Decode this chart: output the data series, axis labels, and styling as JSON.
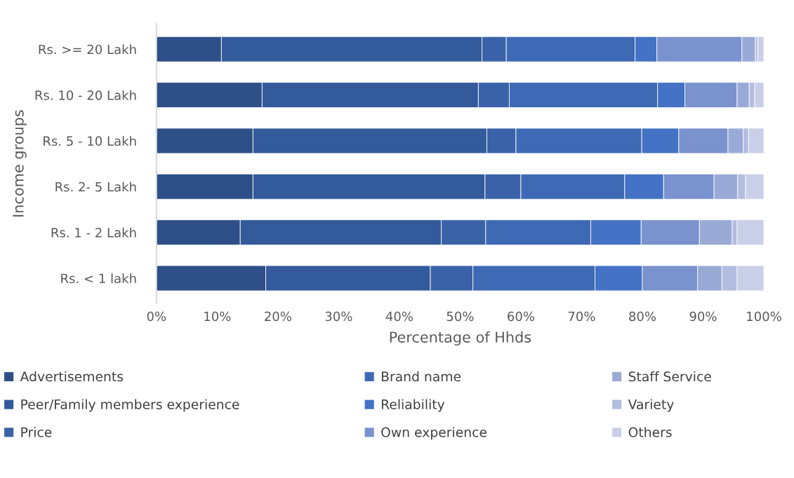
{
  "chart_data": {
    "type": "bar",
    "orientation": "horizontal",
    "stacked": true,
    "xlabel": "Percentage of Hhds",
    "ylabel": "Income groups",
    "categories": [
      "Rs. >= 20 Lakh",
      "Rs. 10 - 20 Lakh",
      "Rs. 5 - 10 Lakh",
      "Rs. 2- 5 Lakh",
      "Rs. 1 - 2 Lakh",
      "Rs. < 1 lakh"
    ],
    "xlim": [
      0,
      100
    ],
    "xticks": [
      {
        "value": 0,
        "label": "0%"
      },
      {
        "value": 10,
        "label": "10%"
      },
      {
        "value": 20,
        "label": "20%"
      },
      {
        "value": 30,
        "label": "30%"
      },
      {
        "value": 40,
        "label": "40%"
      },
      {
        "value": 50,
        "label": "50%"
      },
      {
        "value": 60,
        "label": "60%"
      },
      {
        "value": 70,
        "label": "70%"
      },
      {
        "value": 80,
        "label": "80%"
      },
      {
        "value": 90,
        "label": "90%"
      },
      {
        "value": 100,
        "label": "100%"
      }
    ],
    "grid": false,
    "legend": "bottom",
    "series": [
      {
        "name": "Advertisements",
        "color": "#2e4f87",
        "values": [
          10.7,
          17.4,
          15.9,
          15.9,
          13.8,
          18.0
        ]
      },
      {
        "name": "Peer/Family members experience",
        "color": "#335a9a",
        "values": [
          42.9,
          35.6,
          38.5,
          38.2,
          33.1,
          27.1
        ]
      },
      {
        "name": "Price",
        "color": "#3a62a8",
        "values": [
          4.0,
          5.1,
          4.8,
          5.9,
          7.3,
          7.0
        ]
      },
      {
        "name": "Brand name",
        "color": "#3e6ab5",
        "values": [
          21.2,
          24.4,
          20.7,
          17.1,
          17.3,
          20.1
        ]
      },
      {
        "name": "Reliability",
        "color": "#4472c4",
        "values": [
          3.6,
          4.5,
          6.1,
          6.4,
          8.3,
          7.8
        ]
      },
      {
        "name": "Own experience",
        "color": "#7a92cd",
        "values": [
          14.0,
          8.6,
          8.1,
          8.3,
          9.6,
          9.1
        ]
      },
      {
        "name": "Staff Service",
        "color": "#99aad6",
        "values": [
          2.2,
          2.0,
          2.5,
          3.9,
          5.4,
          4.0
        ]
      },
      {
        "name": "Variety",
        "color": "#b2bddf",
        "values": [
          0.4,
          0.9,
          0.9,
          1.3,
          0.8,
          2.5
        ]
      },
      {
        "name": "Others",
        "color": "#c9cfe8",
        "values": [
          1.0,
          1.5,
          2.5,
          3.0,
          4.4,
          4.4
        ]
      }
    ]
  }
}
